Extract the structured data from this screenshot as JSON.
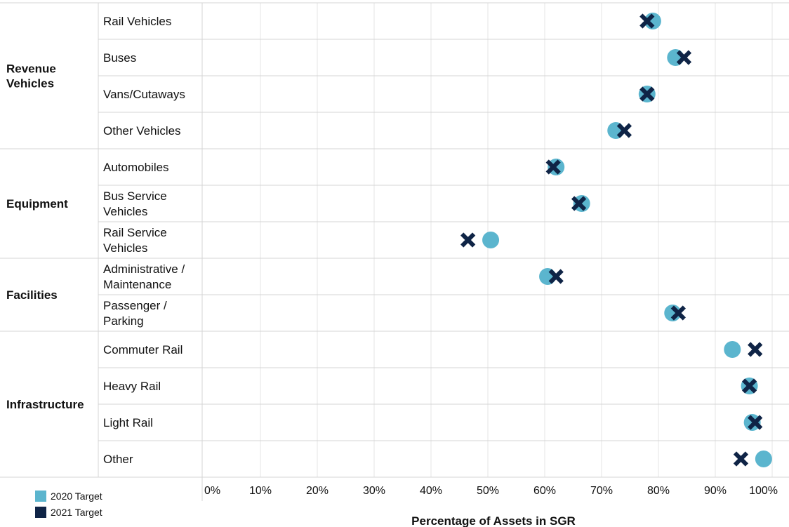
{
  "chart_data": {
    "type": "scatter",
    "xlabel": "Percentage of Assets in SGR",
    "xlim": [
      0,
      100
    ],
    "x_ticks": [
      "0%",
      "10%",
      "20%",
      "30%",
      "40%",
      "50%",
      "60%",
      "70%",
      "80%",
      "90%",
      "100%"
    ],
    "x_tick_values": [
      0,
      10,
      20,
      30,
      40,
      50,
      60,
      70,
      80,
      90,
      100
    ],
    "grid": true,
    "legend_position": "bottom-left",
    "groups": [
      {
        "name": [
          "Revenue",
          "Vehicles"
        ],
        "categories": [
          0,
          1,
          2,
          3
        ]
      },
      {
        "name": [
          "Equipment"
        ],
        "categories": [
          4,
          5,
          6
        ]
      },
      {
        "name": [
          "Facilities"
        ],
        "categories": [
          7,
          8
        ]
      },
      {
        "name": [
          "Infrastructure"
        ],
        "categories": [
          9,
          10,
          11,
          12
        ]
      }
    ],
    "categories": [
      [
        "Rail Vehicles"
      ],
      [
        "Buses"
      ],
      [
        "Vans/Cutaways"
      ],
      [
        "Other Vehicles"
      ],
      [
        "Automobiles"
      ],
      [
        "Bus Service",
        "Vehicles"
      ],
      [
        "Rail Service",
        "Vehicles"
      ],
      [
        "Administrative /",
        "Maintenance"
      ],
      [
        "Passenger /",
        "Parking"
      ],
      [
        "Commuter Rail"
      ],
      [
        "Heavy Rail"
      ],
      [
        "Light Rail"
      ],
      [
        "Other"
      ]
    ],
    "series": [
      {
        "name": "2020 Target",
        "marker": "circle",
        "color": "#5BB5CE",
        "values": [
          79,
          83,
          78,
          72.5,
          62,
          66.5,
          50.5,
          60.5,
          82.5,
          93,
          96,
          96.5,
          98.5
        ]
      },
      {
        "name": "2021 Target",
        "marker": "x",
        "color": "#0F2446",
        "values": [
          78,
          84.5,
          78,
          74,
          61.5,
          66,
          46.5,
          62,
          83.5,
          97,
          96,
          97,
          94.5
        ]
      }
    ]
  }
}
